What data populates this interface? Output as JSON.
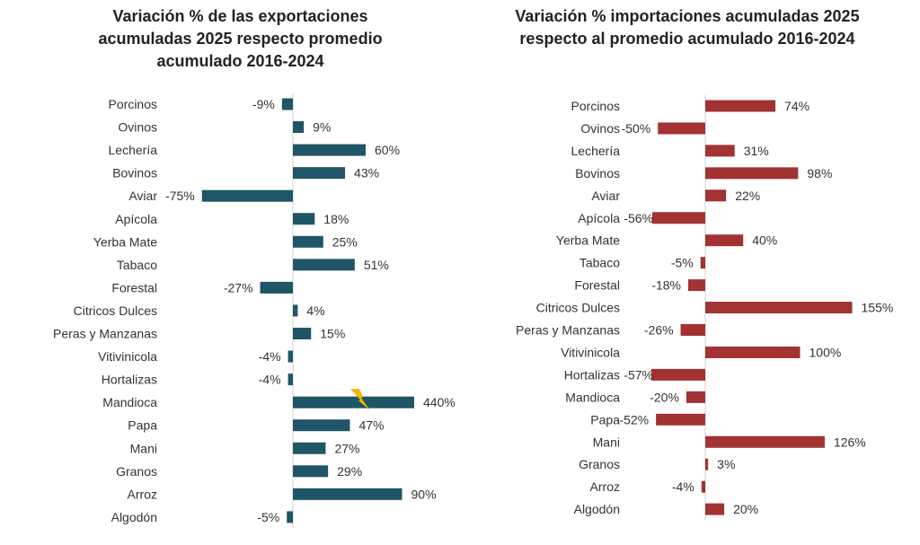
{
  "chart_data": [
    {
      "type": "bar",
      "orientation": "horizontal",
      "title": "Variación % de las exportaciones acumuladas 2025 respecto promedio acumulado 2016-2024",
      "categories": [
        "Porcinos",
        "Ovinos",
        "Lechería",
        "Bovinos",
        "Aviar",
        "Apícola",
        "Yerba Mate",
        "Tabaco",
        "Forestal",
        "Citricos Dulces",
        "Peras y Manzanas",
        "Vitivinicola",
        "Hortalizas",
        "Mandioca",
        "Papa",
        "Mani",
        "Granos",
        "Arroz",
        "Algodón"
      ],
      "values": [
        -9,
        9,
        60,
        43,
        -75,
        18,
        25,
        51,
        -27,
        4,
        15,
        -4,
        -4,
        440,
        47,
        27,
        29,
        90,
        -5
      ],
      "labels": [
        "-9%",
        "9%",
        "60%",
        "43%",
        "-75%",
        "18%",
        "25%",
        "51%",
        "-27%",
        "4%",
        "15%",
        "-4%",
        "-4%",
        "440%",
        "47%",
        "27%",
        "29%",
        "90%",
        "-5%"
      ],
      "color": "#1f5566",
      "axis_break": {
        "category": "Mandioca",
        "icon": "lightning-bolt-icon",
        "color": "#f5b800"
      },
      "grid": false
    },
    {
      "type": "bar",
      "orientation": "horizontal",
      "title": "Variación % importaciones acumuladas 2025 respecto al promedio acumulado 2016-2024",
      "categories": [
        "Porcinos",
        "Ovinos",
        "Lechería",
        "Bovinos",
        "Aviar",
        "Apícola",
        "Yerba Mate",
        "Tabaco",
        "Forestal",
        "Citricos Dulces",
        "Peras y Manzanas",
        "Vitivinicola",
        "Hortalizas",
        "Mandioca",
        "Papa",
        "Mani",
        "Granos",
        "Arroz",
        "Algodón"
      ],
      "values": [
        74,
        -50,
        31,
        98,
        22,
        -56,
        40,
        -5,
        -18,
        155,
        -26,
        100,
        -57,
        -20,
        -52,
        126,
        3,
        -4,
        20
      ],
      "labels": [
        "74%",
        "-50%",
        "31%",
        "98%",
        "22%",
        "-56%",
        "40%",
        "-5%",
        "-18%",
        "155%",
        "-26%",
        "100%",
        "-57%",
        "-20%",
        "-52%",
        "126%",
        "3%",
        "-4%",
        "20%"
      ],
      "color": "#a33232",
      "grid": false
    }
  ]
}
